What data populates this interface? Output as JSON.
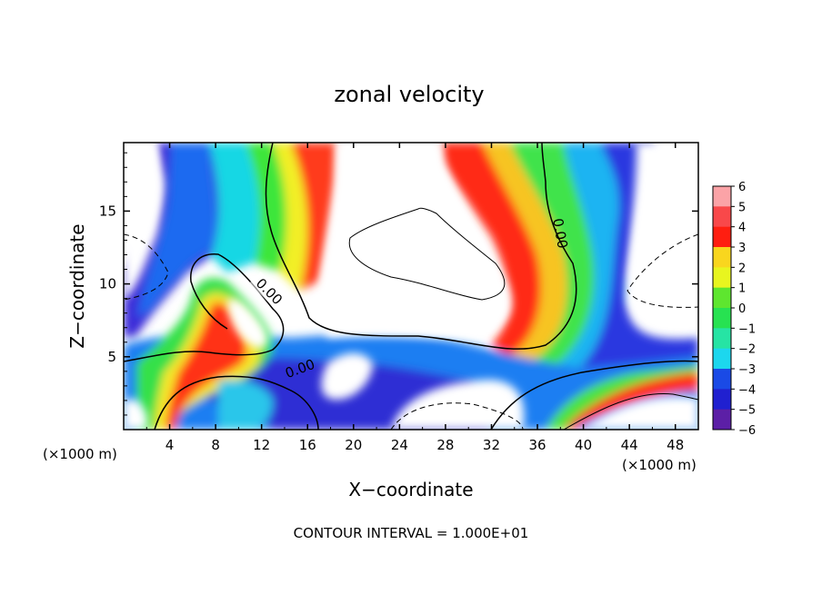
{
  "chart_data": {
    "type": "heatmap",
    "title": "zonal velocity",
    "xlabel": "X−coordinate",
    "ylabel": "Z−coordinate",
    "x_unit_left": "(×1000 m)",
    "x_unit_right": "(×1000 m)",
    "xlim": [
      0,
      50
    ],
    "ylim": [
      0,
      19.7
    ],
    "x_ticks": [
      4,
      8,
      12,
      16,
      20,
      24,
      28,
      32,
      36,
      40,
      44,
      48
    ],
    "y_ticks": [
      5,
      10,
      15
    ],
    "colorbar": {
      "min": -6,
      "max": 6,
      "tick_values": [
        6,
        5,
        4,
        3,
        2,
        1,
        0,
        -1,
        -2,
        -3,
        -4,
        -5,
        -6
      ],
      "tick_labels": [
        "6",
        "5",
        "4",
        "3",
        "2",
        "1",
        "0",
        "−1",
        "−2",
        "−3",
        "−4",
        "−5",
        "−6"
      ]
    },
    "contour_labels": [
      "0.00",
      "0.00",
      "0.00"
    ],
    "grid": false,
    "legend_placement": "right"
  },
  "footer": "CONTOUR INTERVAL = 1.000E+01"
}
